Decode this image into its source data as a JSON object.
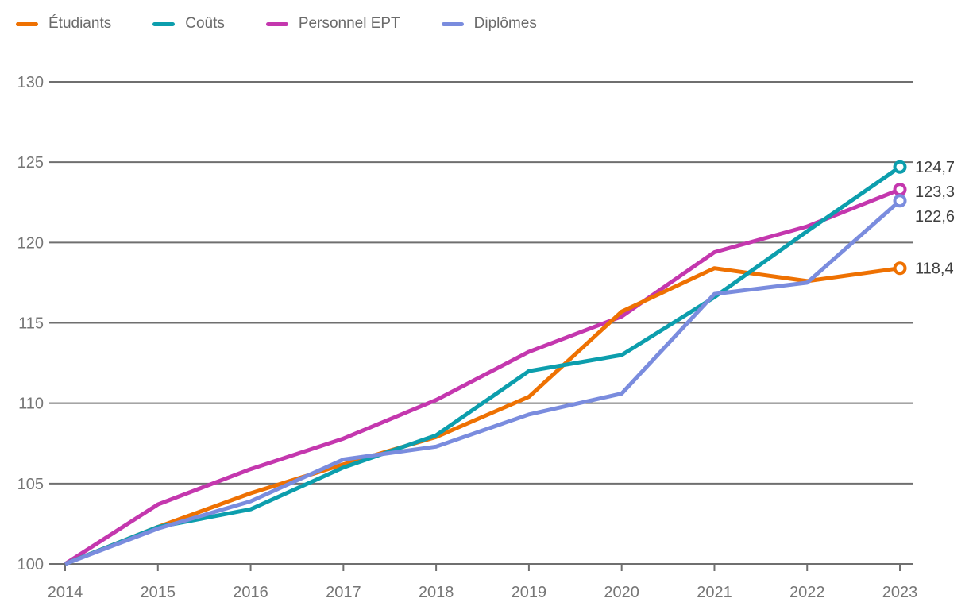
{
  "chart_data": {
    "type": "line",
    "x": [
      2014,
      2015,
      2016,
      2017,
      2018,
      2019,
      2020,
      2021,
      2022,
      2023
    ],
    "series": [
      {
        "name": "Étudiants",
        "color": "#EE7102",
        "values": [
          100,
          102.3,
          104.4,
          106.2,
          107.9,
          110.4,
          115.7,
          118.4,
          117.6,
          118.4
        ],
        "end_label": "118,4"
      },
      {
        "name": "Coûts",
        "color": "#0C9EAD",
        "values": [
          100,
          102.3,
          103.4,
          106.0,
          108.0,
          112.0,
          113.0,
          116.6,
          120.7,
          124.7
        ],
        "end_label": "124,7"
      },
      {
        "name": "Personnel EPT",
        "color": "#C437AE",
        "values": [
          100,
          103.7,
          105.9,
          107.8,
          110.2,
          113.2,
          115.4,
          119.4,
          121.0,
          123.3
        ],
        "end_label": "123,3"
      },
      {
        "name": "Diplômes",
        "color": "#7A8CDE",
        "values": [
          100,
          102.2,
          103.9,
          106.5,
          107.3,
          109.3,
          110.6,
          116.8,
          117.5,
          122.6
        ],
        "end_label": "122,6"
      }
    ],
    "ylim": [
      100,
      130
    ],
    "yticks": [
      100,
      105,
      110,
      115,
      120,
      125,
      130
    ],
    "grid": true,
    "legend_position": "top-left",
    "title": "",
    "xlabel": "",
    "ylabel": ""
  },
  "colors": {
    "background": "#ffffff",
    "gridline": "#6f6f6f",
    "axis_line": "#6f6f6f",
    "axis_text": "#767676",
    "end_label_text": "#3f3f3f",
    "legend_text": "#6b6b6b"
  }
}
